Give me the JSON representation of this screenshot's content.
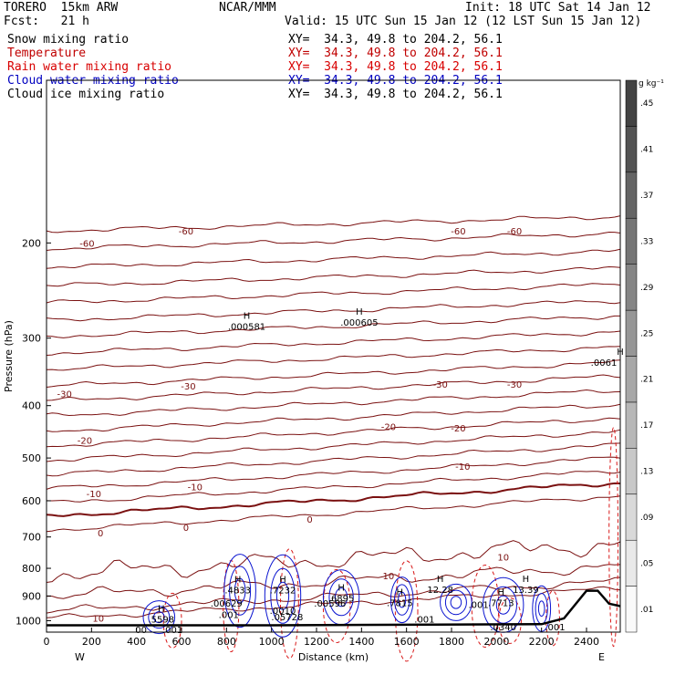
{
  "header": {
    "model": "TORERO  15km ARW",
    "center": "NCAR/MMM",
    "init": "Init: 18 UTC Sat 14 Jan 12",
    "fcst": "Fcst:   21 h",
    "valid": "Valid: 15 UTC Sun 15 Jan 12 (12 LST Sun 15 Jan 12)"
  },
  "fields": [
    {
      "name": "Snow mixing ratio",
      "range": "XY=  34.3, 49.8 to 204.2, 56.1",
      "color": "#000000"
    },
    {
      "name": "Temperature",
      "range": "XY=  34.3, 49.8 to 204.2, 56.1",
      "color": "#c00000"
    },
    {
      "name": "Rain water mixing ratio",
      "range": "XY=  34.3, 49.8 to 204.2, 56.1",
      "color": "#d80000"
    },
    {
      "name": "Cloud water mixing ratio",
      "range": "XY=  34.3, 49.8 to 204.2, 56.1",
      "color": "#0000c0"
    },
    {
      "name": "Cloud ice mixing ratio",
      "range": "XY=  34.3, 49.8 to 204.2, 56.1",
      "color": "#000000"
    }
  ],
  "colors": {
    "temperature": "#7a1010",
    "rain": "#d81818",
    "cloud_water": "#0a14d0",
    "terrain": "#000000"
  },
  "chart_data": {
    "type": "contour",
    "xlabel": "Distance (km)",
    "ylabel": "Pressure (hPa)",
    "xlim": [
      0,
      2550
    ],
    "ylim": [
      1050,
      100
    ],
    "y_scale": "log",
    "x_ticks": [
      0,
      200,
      400,
      600,
      800,
      1000,
      1200,
      1400,
      1600,
      1800,
      2000,
      2200,
      2400
    ],
    "y_ticks": [
      200,
      300,
      400,
      500,
      600,
      700,
      800,
      900,
      1000
    ],
    "x_end_labels": {
      "left": "W",
      "right": "E"
    },
    "colorbar": {
      "unit": "g kg⁻¹",
      "ticks": [
        ".01",
        ".05",
        ".09",
        ".13",
        ".17",
        ".21",
        ".25",
        ".29",
        ".33",
        ".37",
        ".41",
        ".45"
      ]
    },
    "temperature_contour_labels": [
      {
        "text": "-60",
        "x": 180,
        "p": 200
      },
      {
        "text": "-60",
        "x": 620,
        "p": 190
      },
      {
        "text": "-60",
        "x": 1830,
        "p": 190
      },
      {
        "text": "-60",
        "x": 2080,
        "p": 190
      },
      {
        "text": "-30",
        "x": 80,
        "p": 380
      },
      {
        "text": "-30",
        "x": 630,
        "p": 368
      },
      {
        "text": "-30",
        "x": 1750,
        "p": 365
      },
      {
        "text": "-30",
        "x": 2080,
        "p": 365
      },
      {
        "text": "-20",
        "x": 170,
        "p": 463
      },
      {
        "text": "-20",
        "x": 1520,
        "p": 437
      },
      {
        "text": "-20",
        "x": 1830,
        "p": 440
      },
      {
        "text": "-10",
        "x": 210,
        "p": 582
      },
      {
        "text": "-10",
        "x": 660,
        "p": 565
      },
      {
        "text": "-10",
        "x": 1850,
        "p": 518
      },
      {
        "text": "0",
        "x": 240,
        "p": 688
      },
      {
        "text": "0",
        "x": 620,
        "p": 672
      },
      {
        "text": "0",
        "x": 1170,
        "p": 648
      },
      {
        "text": "10",
        "x": 1520,
        "p": 825
      },
      {
        "text": "10",
        "x": 2030,
        "p": 762
      },
      {
        "text": "10",
        "x": 230,
        "p": 988
      }
    ],
    "max_labels": [
      {
        "text": "H",
        "value": ".000581",
        "x": 890,
        "p": 283
      },
      {
        "text": "H",
        "value": ".000605",
        "x": 1390,
        "p": 278
      },
      {
        "text": "H",
        "value": ".0061",
        "x": 2550,
        "p": 330
      },
      {
        "text": "H",
        "value": "12.28",
        "x": 1750,
        "p": 868
      },
      {
        "text": "H",
        "value": "13.39",
        "x": 2130,
        "p": 868
      },
      {
        "text": "H",
        "value": ".4833",
        "x": 850,
        "p": 870
      },
      {
        "text": "H",
        "value": ".7232",
        "x": 1050,
        "p": 870
      },
      {
        "text": "H",
        "value": ".6895",
        "x": 1310,
        "p": 900
      },
      {
        "text": "H",
        "value": ".7815",
        "x": 1570,
        "p": 918
      },
      {
        "text": "H",
        "value": ".7713",
        "x": 2020,
        "p": 918
      },
      {
        "text": "H",
        "value": ".5598",
        "x": 510,
        "p": 985
      },
      {
        "text": "",
        "value": ".00629",
        "x": 800,
        "p": 920
      },
      {
        "text": "",
        "value": ".00596",
        "x": 1260,
        "p": 920
      },
      {
        "text": "",
        "value": ".0010",
        "x": 1050,
        "p": 950
      },
      {
        "text": "",
        "value": ".05728",
        "x": 1070,
        "p": 975
      },
      {
        "text": "",
        "value": ".001",
        "x": 810,
        "p": 965
      },
      {
        "text": "",
        "value": ".001",
        "x": 1920,
        "p": 925
      },
      {
        "text": "",
        "value": ".001",
        "x": 1680,
        "p": 985
      },
      {
        "text": "",
        "value": ".001",
        "x": 560,
        "p": 1030
      },
      {
        "text": "",
        "value": ".0340",
        "x": 2030,
        "p": 1018
      },
      {
        "text": "",
        "value": ".001",
        "x": 2260,
        "p": 1018
      },
      {
        "text": "",
        "value": "00",
        "x": 420,
        "p": 1030
      }
    ]
  }
}
